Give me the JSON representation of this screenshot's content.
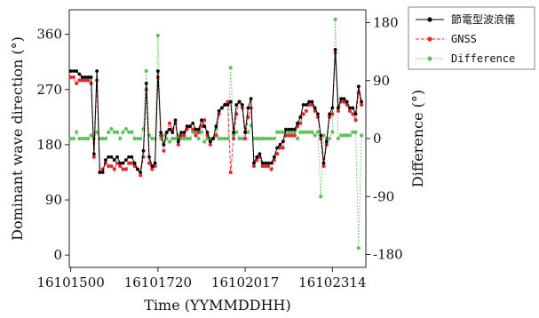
{
  "chart_data": {
    "type": "line",
    "title": "",
    "xlabel": "Time (YYMMDDHH)",
    "ylabel_left": "Dominant wave direction (°)",
    "ylabel_right": "Difference (°)",
    "x_tick_labels": [
      "16101500",
      "16101720",
      "16102017",
      "16102314"
    ],
    "y_left_ticks": [
      0,
      90,
      180,
      270,
      360
    ],
    "y_right_ticks": [
      -180,
      -90,
      0,
      90,
      180
    ],
    "y_left_range": [
      -20,
      400
    ],
    "y_right_range": [
      -200,
      200
    ],
    "x_range_index": [
      -0.5,
      101.5
    ],
    "legend_position": "top-right outside plot",
    "grid": false,
    "series": [
      {
        "name": "節電型波浪儀",
        "axis": "left",
        "color": "#000000",
        "style": "solid",
        "marker": "circle",
        "values": [
          300,
          300,
          300,
          295,
          290,
          290,
          290,
          290,
          165,
          300,
          135,
          135,
          155,
          160,
          160,
          155,
          160,
          150,
          150,
          155,
          160,
          160,
          150,
          140,
          135,
          170,
          280,
          160,
          145,
          150,
          300,
          200,
          180,
          200,
          205,
          200,
          220,
          185,
          200,
          200,
          210,
          210,
          215,
          205,
          205,
          220,
          210,
          200,
          185,
          190,
          210,
          235,
          240,
          245,
          245,
          250,
          200,
          245,
          250,
          245,
          200,
          240,
          255,
          150,
          160,
          165,
          150,
          150,
          150,
          150,
          160,
          175,
          180,
          185,
          205,
          205,
          205,
          205,
          215,
          225,
          245,
          245,
          250,
          250,
          240,
          230,
          195,
          150,
          185,
          230,
          240,
          335,
          240,
          255,
          255,
          250,
          240,
          240,
          230,
          275,
          250
        ]
      },
      {
        "name": "GNSS",
        "axis": "left",
        "color": "#e8262b",
        "style": "dashed",
        "marker": "circle",
        "values": [
          290,
          290,
          280,
          285,
          285,
          285,
          285,
          280,
          160,
          285,
          135,
          140,
          150,
          145,
          145,
          140,
          150,
          145,
          140,
          140,
          150,
          150,
          145,
          140,
          130,
          160,
          270,
          150,
          140,
          145,
          290,
          195,
          170,
          200,
          215,
          205,
          215,
          180,
          195,
          195,
          205,
          210,
          205,
          195,
          200,
          210,
          220,
          195,
          180,
          190,
          195,
          230,
          240,
          245,
          250,
          135,
          190,
          230,
          250,
          240,
          190,
          225,
          240,
          145,
          155,
          160,
          145,
          145,
          145,
          140,
          155,
          165,
          175,
          175,
          195,
          195,
          195,
          195,
          210,
          215,
          230,
          235,
          245,
          245,
          235,
          225,
          190,
          145,
          180,
          225,
          230,
          330,
          235,
          250,
          250,
          245,
          235,
          230,
          220,
          265,
          245
        ]
      },
      {
        "name": "Difference",
        "axis": "right",
        "color": "#5cc35c",
        "style": "dotted",
        "marker": "circle",
        "values": [
          0,
          0,
          10,
          0,
          0,
          0,
          0,
          5,
          0,
          10,
          0,
          0,
          0,
          10,
          15,
          10,
          10,
          0,
          10,
          15,
          10,
          10,
          0,
          0,
          0,
          15,
          105,
          5,
          0,
          0,
          160,
          0,
          5,
          0,
          -5,
          0,
          0,
          5,
          0,
          0,
          0,
          0,
          10,
          10,
          0,
          10,
          -5,
          0,
          0,
          0,
          15,
          0,
          0,
          0,
          0,
          110,
          5,
          10,
          0,
          0,
          10,
          10,
          20,
          0,
          0,
          0,
          0,
          0,
          0,
          0,
          0,
          10,
          10,
          10,
          10,
          10,
          10,
          10,
          0,
          10,
          10,
          10,
          10,
          10,
          5,
          10,
          -90,
          5,
          0,
          0,
          10,
          185,
          0,
          5,
          5,
          5,
          5,
          10,
          10,
          -170,
          5
        ]
      }
    ]
  }
}
